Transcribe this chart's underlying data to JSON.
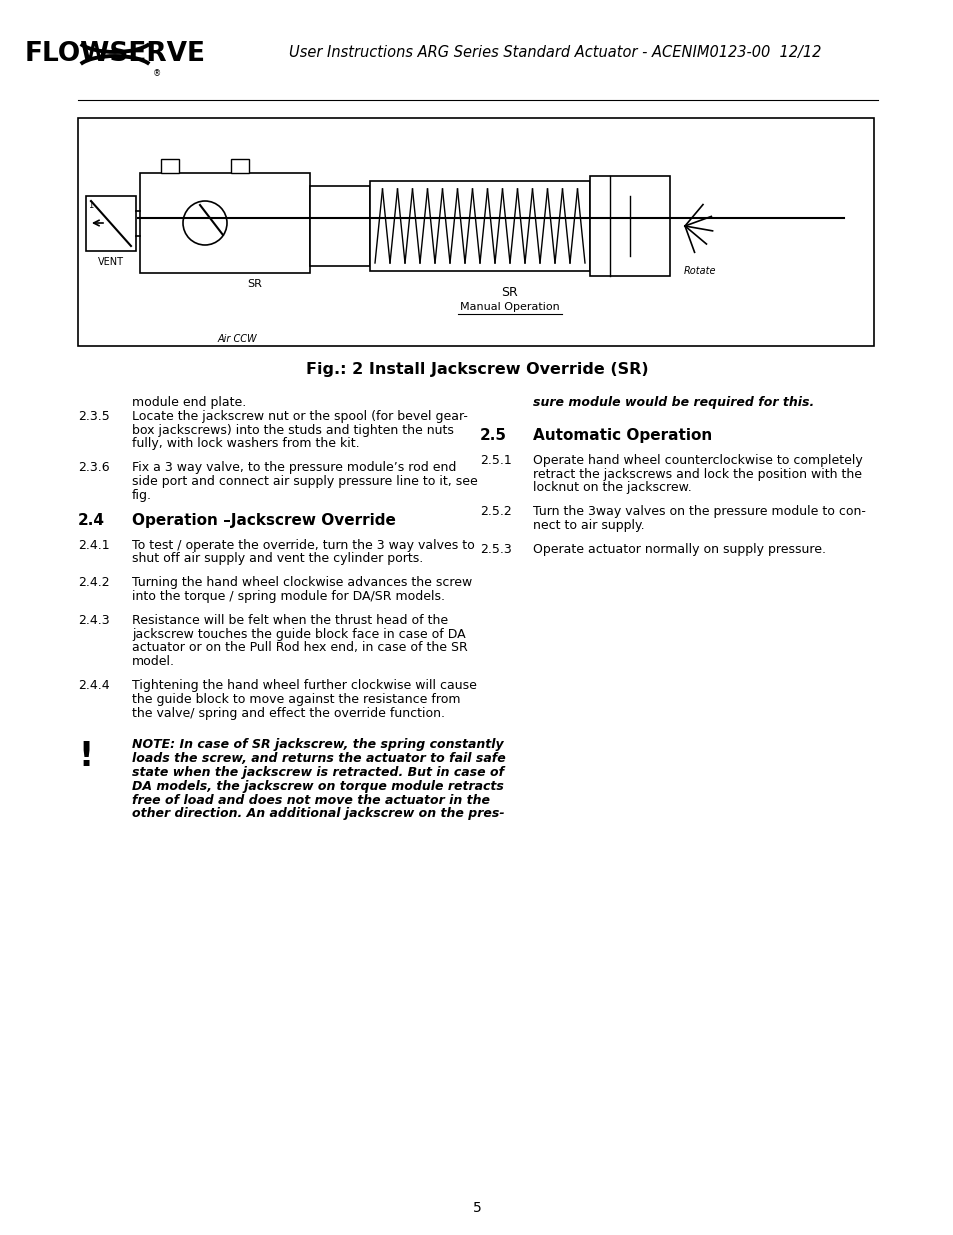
{
  "header_text": "User Instructions ARG Series Standard Actuator - ACENIM0123-00  12/12",
  "fig_caption": "Fig.: 2 Install Jackscrew Override (SR)",
  "page_number": "5",
  "bg_color": "#ffffff",
  "text_color": "#000000",
  "left_sections": [
    {
      "type": "continuation",
      "number": "",
      "text": "module end plate."
    },
    {
      "type": "item",
      "number": "2.3.5",
      "text": "Locate the jackscrew nut or the spool (for bevel gear-\nbox jackscrews) into the studs and tighten the nuts\nfully, with lock washers from the kit."
    },
    {
      "type": "spacer"
    },
    {
      "type": "item",
      "number": "2.3.6",
      "text": "Fix a 3 way valve, to the pressure module’s rod end\nside port and connect air supply pressure line to it, see\nfig."
    },
    {
      "type": "spacer"
    },
    {
      "type": "heading",
      "number": "2.4",
      "text": "Operation –Jackscrew Override"
    },
    {
      "type": "spacer"
    },
    {
      "type": "item",
      "number": "2.4.1",
      "text": "To test / operate the override, turn the 3 way valves to\nshut off air supply and vent the cylinder ports."
    },
    {
      "type": "spacer"
    },
    {
      "type": "item",
      "number": "2.4.2",
      "text": "Turning the hand wheel clockwise advances the screw\ninto the torque / spring module for DA/SR models."
    },
    {
      "type": "spacer"
    },
    {
      "type": "item",
      "number": "2.4.3",
      "text": "Resistance will be felt when the thrust head of the\njackscrew touches the guide block face in case of DA\nactuator or on the Pull Rod hex end, in case of the SR\nmodel."
    },
    {
      "type": "spacer"
    },
    {
      "type": "item",
      "number": "2.4.4",
      "text": "Tightening the hand wheel further clockwise will cause\nthe guide block to move against the resistance from\nthe valve/ spring and effect the override function."
    },
    {
      "type": "spacer_large"
    },
    {
      "type": "note",
      "number": "",
      "text": "NOTE: In case of SR jackscrew, the spring constantly\nloads the screw, and returns the actuator to fail safe\nstate when the jackscrew is retracted. But in case of\nDA models, the jackscrew on torque module retracts\nfree of load and does not move the actuator in the\nother direction. An additional jackscrew on the pres-"
    }
  ],
  "right_sections": [
    {
      "type": "note_continuation",
      "text": "sure module would be required for this."
    },
    {
      "type": "spacer_large"
    },
    {
      "type": "heading",
      "number": "2.5",
      "text": "Automatic Operation"
    },
    {
      "type": "spacer"
    },
    {
      "type": "item",
      "number": "2.5.1",
      "text": "Operate hand wheel counterclockwise to completely\nretract the jackscrews and lock the position with the\nlocknut on the jackscrew."
    },
    {
      "type": "spacer"
    },
    {
      "type": "item",
      "number": "2.5.2",
      "text": "Turn the 3way valves on the pressure module to con-\nnect to air supply."
    },
    {
      "type": "spacer"
    },
    {
      "type": "item",
      "number": "2.5.3",
      "text": "Operate actuator normally on supply pressure."
    }
  ]
}
